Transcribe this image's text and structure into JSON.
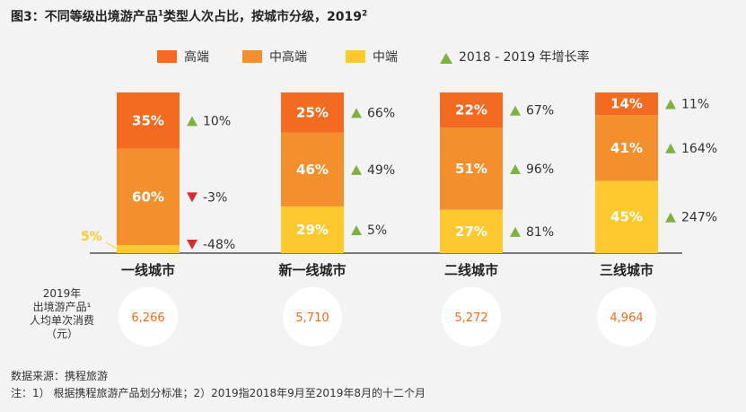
{
  "title": "图3：不同等级出境游产品",
  "title_sup": "1",
  "title_rest": "类型人次占比，按城市分级，2019",
  "title_sup2": "2",
  "legend": {
    "high": "高端",
    "midhigh": "中高端",
    "mid": "中端",
    "growth": "2018 - 2019 年增长率"
  },
  "colors": {
    "high": "#f26b21",
    "midhigh": "#f3902d",
    "mid": "#fdc92f",
    "up": "#7cb340",
    "down": "#d32f2f",
    "spend": "#f26b21"
  },
  "spend_label": [
    "2019年",
    "出境游产品¹",
    "人均单次消费",
    "（元）"
  ],
  "source": "数据来源：携程旅游",
  "note": "注：1） 根据携程旅游产品划分标准；2）2019指2018年9月至2019年8月的十二个月",
  "chart_data": {
    "type": "bar",
    "stacked": true,
    "categories": [
      "一线城市",
      "新一线城市",
      "二线城市",
      "三线城市"
    ],
    "series": [
      {
        "name": "中端",
        "values": [
          5,
          29,
          27,
          45
        ]
      },
      {
        "name": "中高端",
        "values": [
          60,
          46,
          51,
          41
        ]
      },
      {
        "name": "高端",
        "values": [
          35,
          25,
          22,
          14
        ]
      }
    ],
    "growth": [
      {
        "mid": "-48%",
        "midhigh": "-3%",
        "high": "10%"
      },
      {
        "mid": "5%",
        "midhigh": "49%",
        "high": "66%"
      },
      {
        "mid": "81%",
        "midhigh": "96%",
        "high": "67%"
      },
      {
        "mid": "247%",
        "midhigh": "164%",
        "high": "11%"
      }
    ],
    "growth_direction": [
      {
        "mid": "down",
        "midhigh": "down",
        "high": "up"
      },
      {
        "mid": "up",
        "midhigh": "up",
        "high": "up"
      },
      {
        "mid": "up",
        "midhigh": "up",
        "high": "up"
      },
      {
        "mid": "up",
        "midhigh": "up",
        "high": "up"
      }
    ],
    "spend": [
      "6,266",
      "5,710",
      "5,272",
      "4,964"
    ],
    "value_labels": [
      {
        "mid": "5%",
        "midhigh": "60%",
        "high": "35%"
      },
      {
        "mid": "29%",
        "midhigh": "46%",
        "high": "25%"
      },
      {
        "mid": "27%",
        "midhigh": "51%",
        "high": "22%"
      },
      {
        "mid": "45%",
        "midhigh": "41%",
        "high": "14%"
      }
    ]
  }
}
